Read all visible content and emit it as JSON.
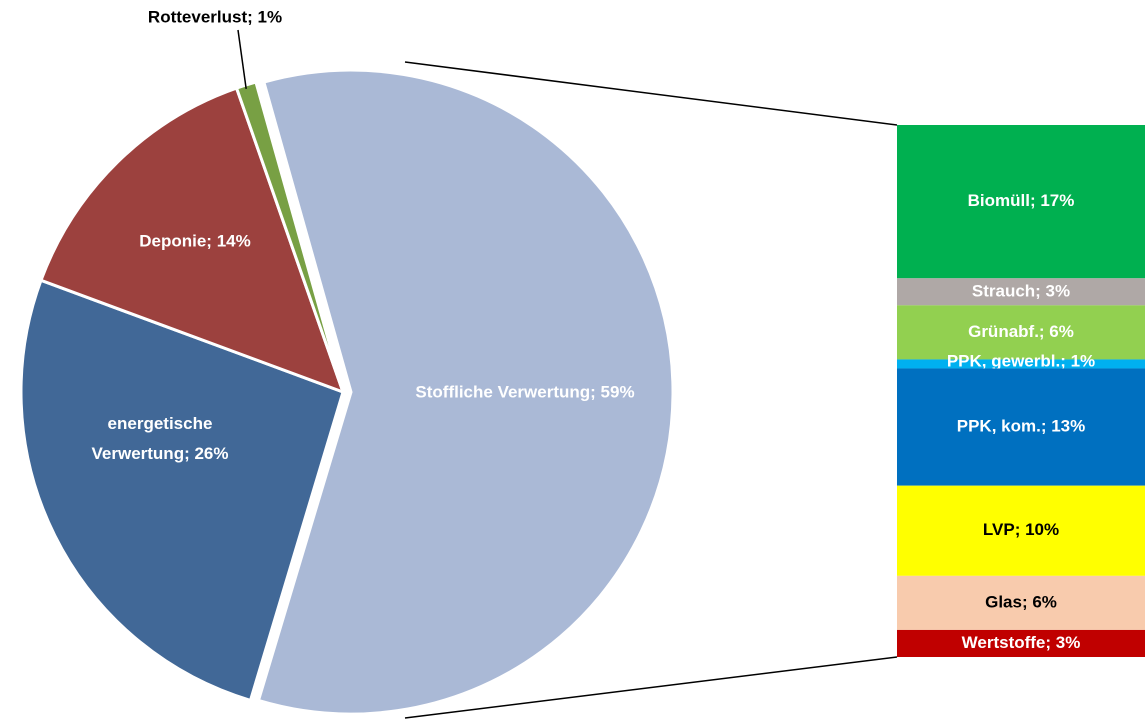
{
  "chart_data": [
    {
      "type": "pie",
      "labels": [
        "Stoffliche Verwertung; 59%",
        "energetische Verwertung; 26%",
        "Deponie; 14%",
        "Rotteverlust; 1%"
      ],
      "values": [
        59,
        26,
        14,
        1
      ],
      "colors": [
        "#aab9d6",
        "#416897",
        "#9c413e",
        "#78a044"
      ]
    },
    {
      "type": "stacked-bar",
      "labels": [
        "Biomüll; 17%",
        "Strauch; 3%",
        "Grünabf.; 6%",
        "PPK, gewerbl.; 1%",
        "PPK, kom.; 13%",
        "LVP; 10%",
        "Glas; 6%",
        "Wertstoffe; 3%"
      ],
      "values": [
        17,
        3,
        6,
        1,
        13,
        10,
        6,
        3
      ],
      "colors": [
        "#00b050",
        "#afa8a6",
        "#92d050",
        "#00b0f0",
        "#0070c0",
        "#ffff00",
        "#f8cbad",
        "#c00000"
      ]
    }
  ]
}
